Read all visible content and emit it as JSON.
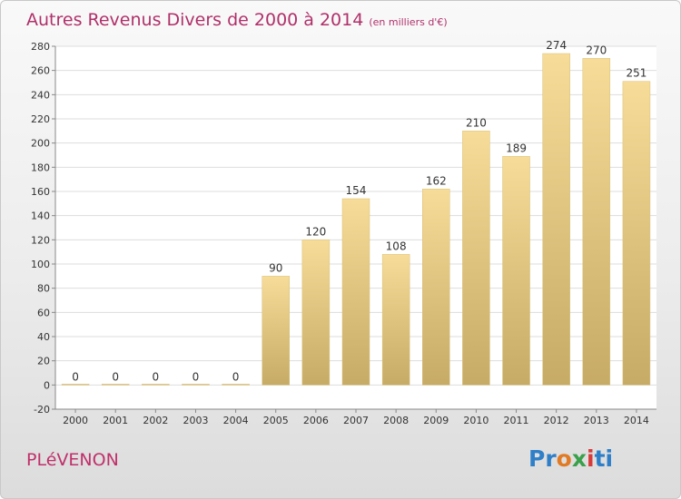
{
  "chart_data": {
    "type": "bar",
    "title": "Autres Revenus Divers de 2000 à 2014",
    "unit": "(en milliers d'€)",
    "categories": [
      "2000",
      "2001",
      "2002",
      "2003",
      "2004",
      "2005",
      "2006",
      "2007",
      "2008",
      "2009",
      "2010",
      "2011",
      "2012",
      "2013",
      "2014"
    ],
    "values": [
      0,
      0,
      0,
      0,
      0,
      90,
      120,
      154,
      108,
      162,
      210,
      189,
      274,
      270,
      251
    ],
    "data_labels": [
      "0",
      "0",
      "0",
      "0",
      "0",
      "90",
      "120",
      "154",
      "108",
      "162",
      "210",
      "189",
      "274",
      "270",
      "251"
    ],
    "ylim": [
      -20,
      280
    ],
    "yticks": [
      -20,
      0,
      20,
      40,
      60,
      80,
      100,
      120,
      140,
      160,
      180,
      200,
      220,
      240,
      260,
      280
    ],
    "grid": true,
    "bar_color": "#e8cf86"
  },
  "commune": "PLéVENON",
  "logo": {
    "p1": "Pr",
    "p2": "o",
    "p3": "x",
    "p4": "i",
    "p5": "ti"
  }
}
